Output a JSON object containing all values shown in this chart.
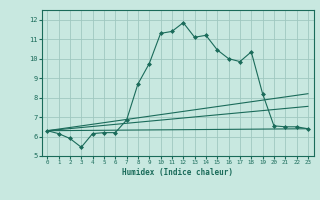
{
  "title": "",
  "xlabel": "Humidex (Indice chaleur)",
  "xlim": [
    -0.5,
    23.5
  ],
  "ylim": [
    5,
    12.5
  ],
  "yticks": [
    5,
    6,
    7,
    8,
    9,
    10,
    11,
    12
  ],
  "xticks": [
    0,
    1,
    2,
    3,
    4,
    5,
    6,
    7,
    8,
    9,
    10,
    11,
    12,
    13,
    14,
    15,
    16,
    17,
    18,
    19,
    20,
    21,
    22,
    23
  ],
  "background_color": "#c8e8e0",
  "line_color": "#1a6b5a",
  "grid_color": "#a0c8c0",
  "series": [
    {
      "x": [
        0,
        1,
        2,
        3,
        4,
        5,
        6,
        7,
        8,
        9,
        10,
        11,
        12,
        13,
        14,
        15,
        16,
        17,
        18,
        19,
        20,
        21,
        22,
        23
      ],
      "y": [
        6.3,
        6.15,
        5.9,
        5.45,
        6.15,
        6.2,
        6.2,
        6.85,
        8.7,
        9.75,
        11.3,
        11.4,
        11.85,
        11.1,
        11.2,
        10.45,
        10.0,
        9.85,
        10.35,
        8.2,
        6.55,
        6.5,
        6.5,
        6.4
      ],
      "marker": "D",
      "markersize": 2.0
    },
    {
      "x": [
        0,
        23
      ],
      "y": [
        6.3,
        6.4
      ],
      "marker": null,
      "markersize": 0
    },
    {
      "x": [
        0,
        23
      ],
      "y": [
        6.3,
        7.55
      ],
      "marker": null,
      "markersize": 0
    },
    {
      "x": [
        0,
        23
      ],
      "y": [
        6.3,
        8.2
      ],
      "marker": null,
      "markersize": 0
    }
  ]
}
